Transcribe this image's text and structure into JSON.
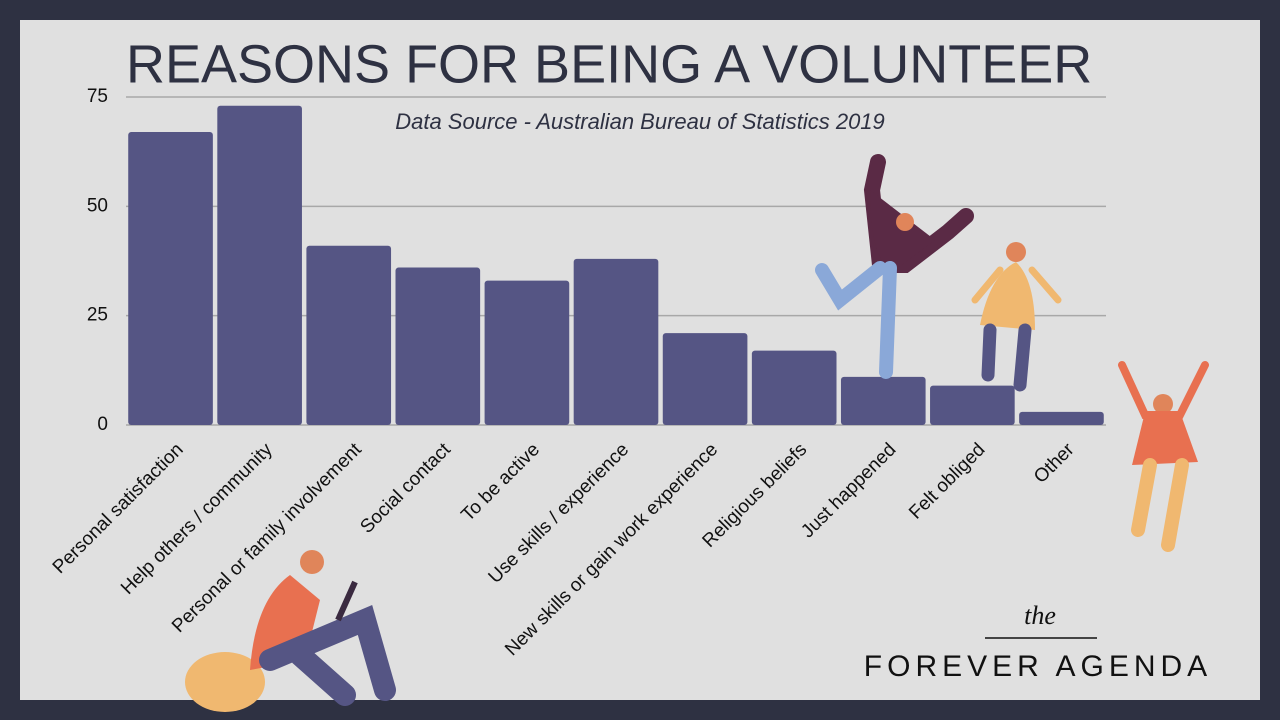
{
  "chart_data": {
    "type": "bar",
    "title": "REASONS FOR BEING A VOLUNTEER",
    "subtitle": "Data Source - Australian Bureau of Statistics 2019",
    "categories": [
      "Personal satisfaction",
      "Help others / community",
      "Personal or family involvement",
      "Social contact",
      "To be active",
      "Use skills / experience",
      "New skills or gain work experience",
      "Religious beliefs",
      "Just happened",
      "Felt obliged",
      "Other"
    ],
    "values": [
      67,
      73,
      41,
      36,
      33,
      38,
      21,
      17,
      11,
      9,
      3
    ],
    "color": "#555584",
    "ylim": [
      0,
      75
    ],
    "yticks": [
      0,
      25,
      50,
      75
    ],
    "grid": true
  },
  "branding": {
    "small": "the",
    "name": "FOREVER AGENDA"
  }
}
